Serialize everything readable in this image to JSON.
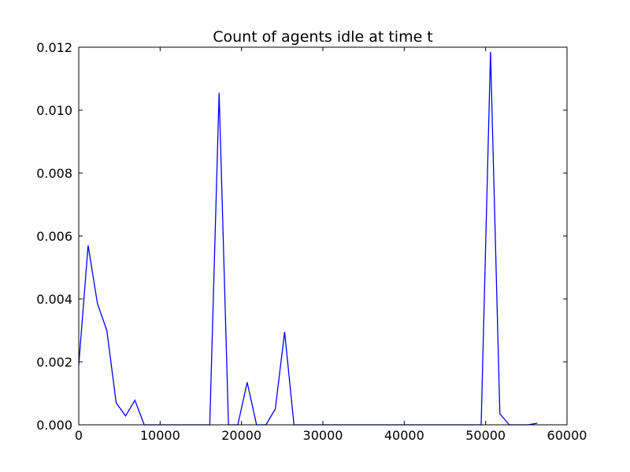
{
  "chart_data": {
    "type": "line",
    "title": "Count of agents idle at time t",
    "xlabel": "",
    "ylabel": "",
    "xlim": [
      0,
      60000
    ],
    "ylim": [
      0,
      0.012
    ],
    "grid": false,
    "x_ticks": [
      "0",
      "10000",
      "20000",
      "30000",
      "40000",
      "50000",
      "60000"
    ],
    "y_ticks": [
      "0.000",
      "0.002",
      "0.004",
      "0.006",
      "0.008",
      "0.010",
      "0.012"
    ],
    "line_color": "#0000ff",
    "series": [
      {
        "x": [
          0,
          1150,
          2300,
          3450,
          4600,
          5750,
          6900,
          8050,
          9200,
          10350,
          11500,
          12650,
          13800,
          14950,
          16100,
          17250,
          18400,
          19550,
          20700,
          21850,
          23000,
          24150,
          25300,
          26450,
          27600,
          28750,
          29900,
          31050,
          32200,
          33350,
          34500,
          35650,
          36800,
          37950,
          39100,
          40250,
          41400,
          42550,
          43700,
          44850,
          46000,
          47150,
          48300,
          49450,
          50600,
          51750,
          52900,
          54050,
          55200,
          56350
        ],
        "y": [
          0.0019,
          0.0057,
          0.00385,
          0.003,
          0.0007,
          0.00028,
          0.00078,
          0,
          0,
          0,
          0,
          0,
          0,
          0,
          0,
          0.01055,
          0,
          0,
          0.00135,
          0,
          0,
          0.0005,
          0.00295,
          0,
          0,
          0,
          0,
          0,
          0,
          0,
          0,
          0,
          0,
          0,
          0,
          0,
          0,
          0,
          0,
          0,
          0,
          0,
          0,
          0,
          0.01185,
          0.00035,
          0,
          0,
          0,
          5e-05
        ]
      }
    ]
  }
}
